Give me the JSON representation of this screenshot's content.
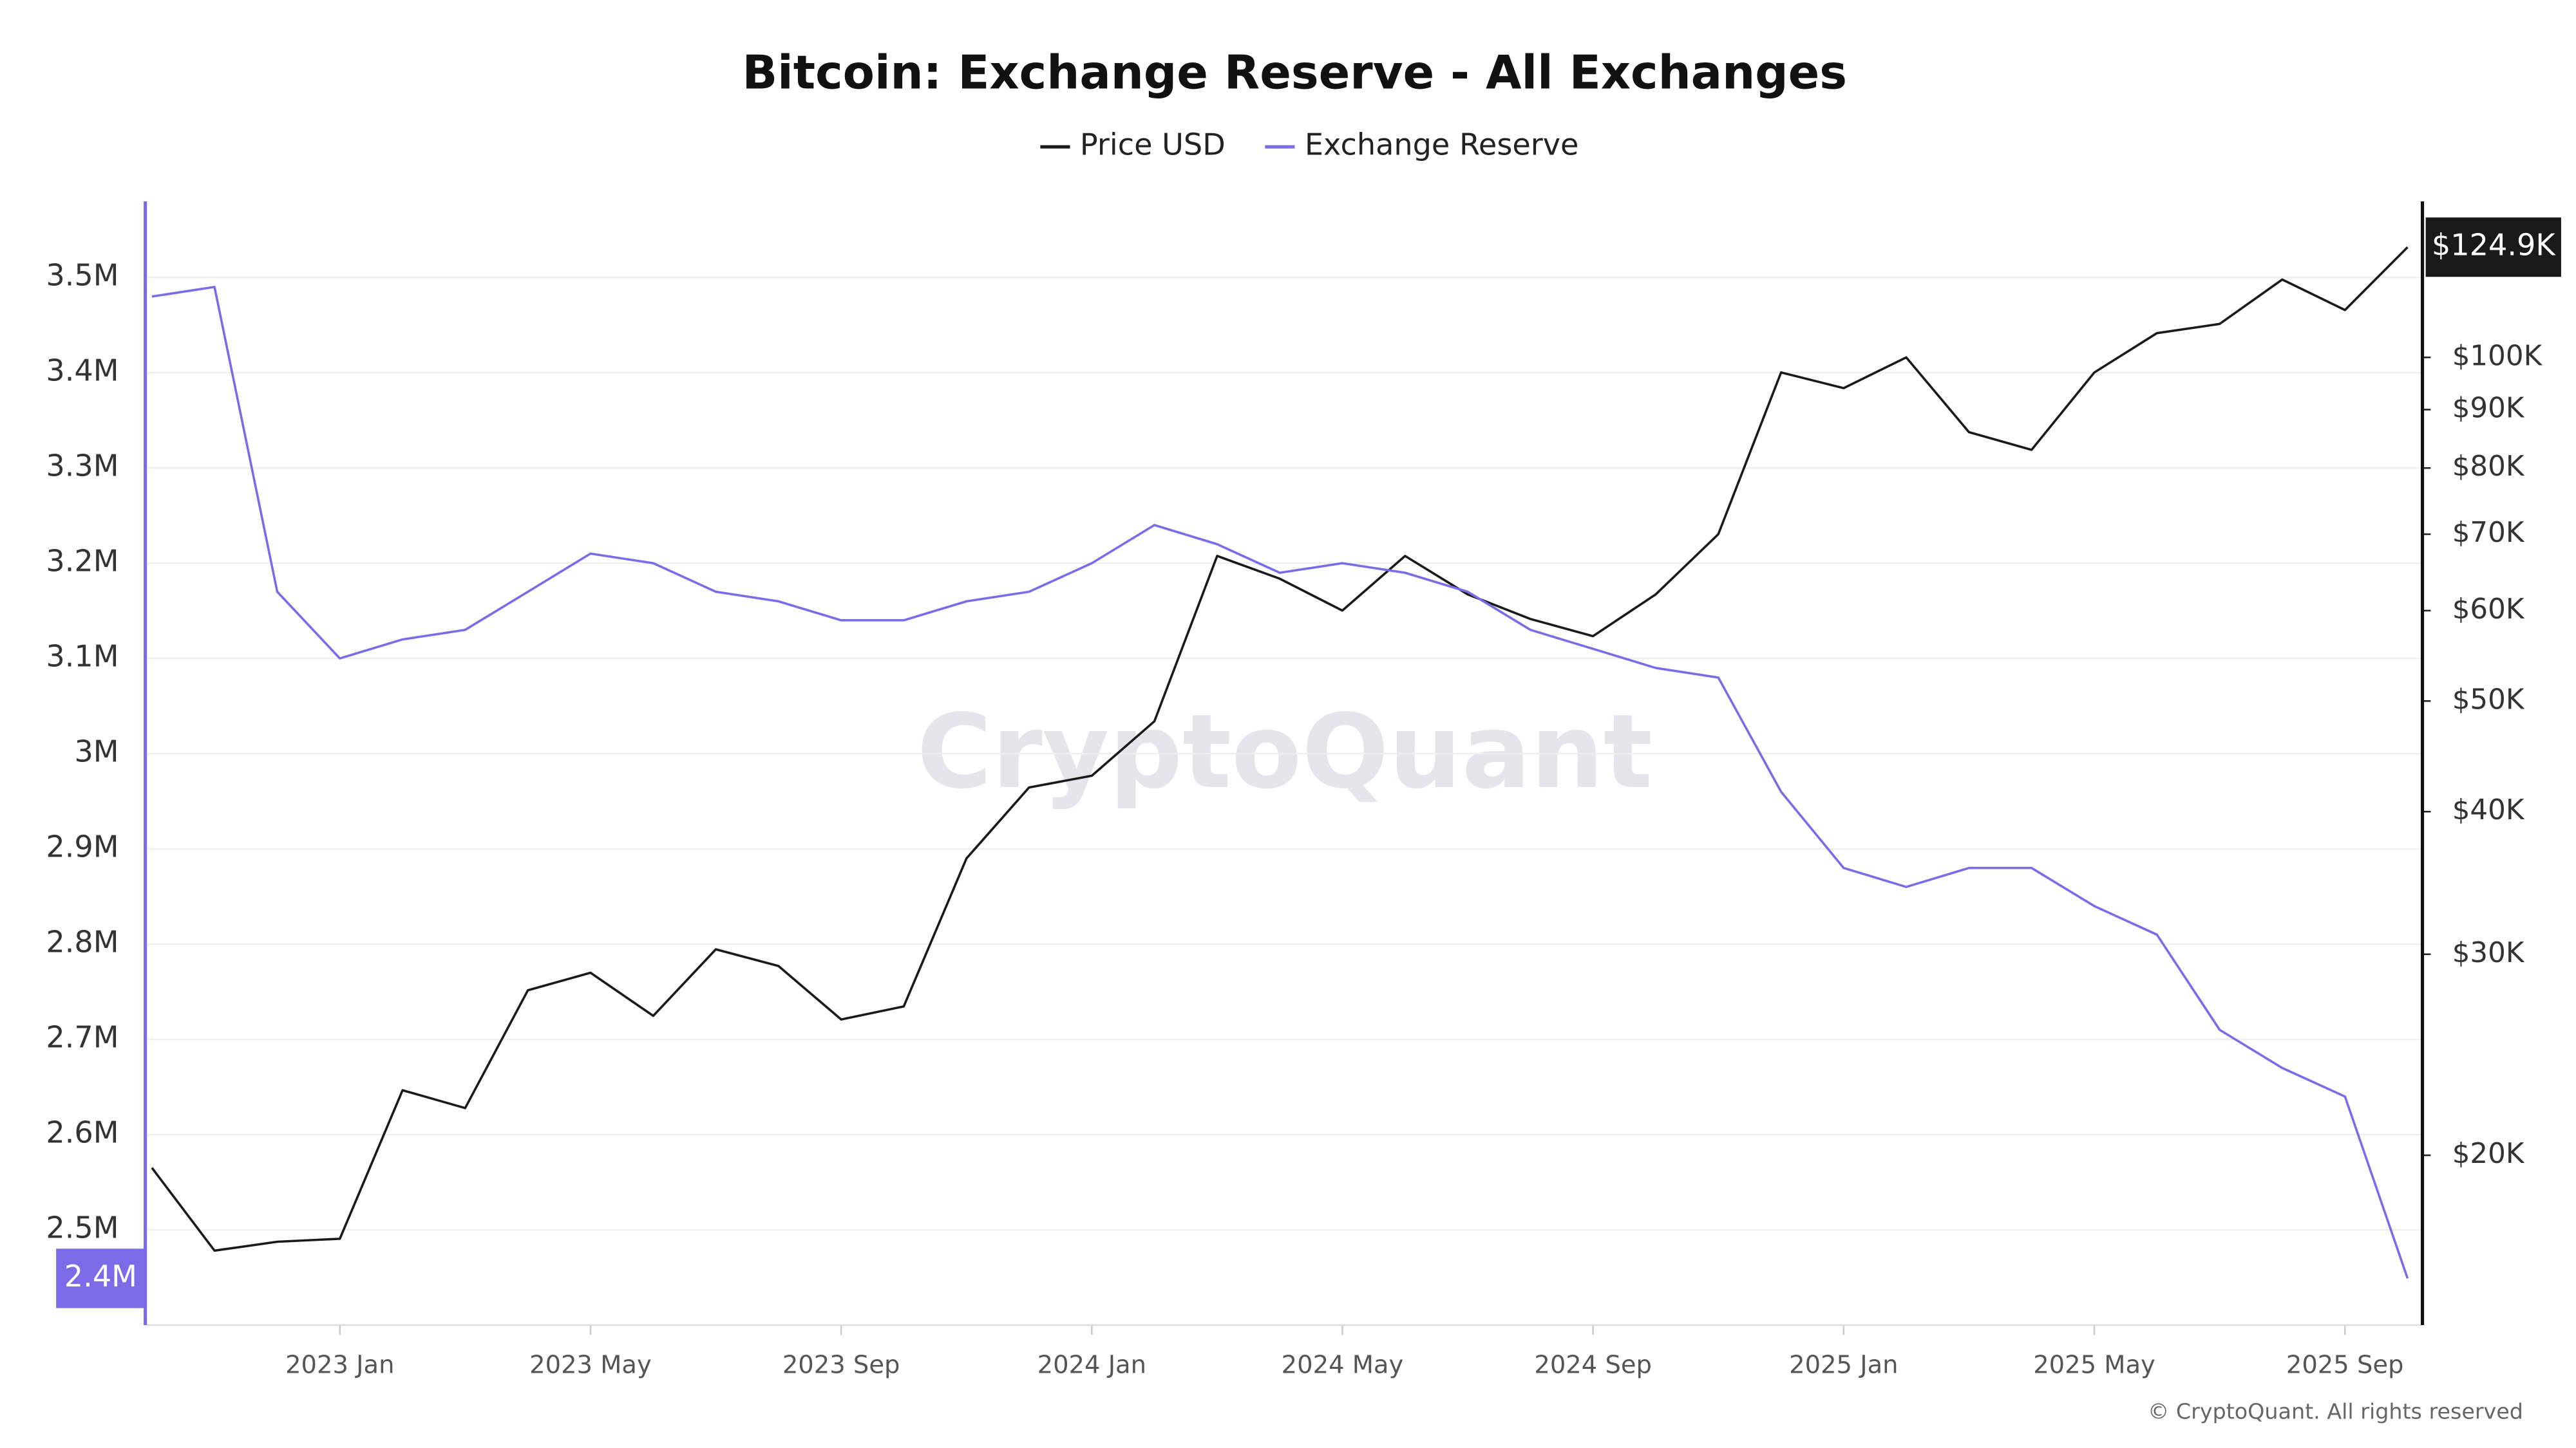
{
  "chart_data": {
    "type": "line",
    "title": "Bitcoin: Exchange Reserve - All Exchanges",
    "watermark": "CryptoQuant",
    "copyright": "© CryptoQuant. All rights reserved",
    "x": [
      "2022-10",
      "2022-11",
      "2022-12",
      "2023-01",
      "2023-02",
      "2023-03",
      "2023-04",
      "2023-05",
      "2023-06",
      "2023-07",
      "2023-08",
      "2023-09",
      "2023-10",
      "2023-11",
      "2023-12",
      "2024-01",
      "2024-02",
      "2024-03",
      "2024-04",
      "2024-05",
      "2024-06",
      "2024-07",
      "2024-08",
      "2024-09",
      "2024-10",
      "2024-11",
      "2024-12",
      "2025-01",
      "2025-02",
      "2025-03",
      "2025-04",
      "2025-05",
      "2025-06",
      "2025-07",
      "2025-08",
      "2025-09",
      "2025-10"
    ],
    "xlim": [
      "2022-10",
      "2025-10"
    ],
    "xticks": [
      {
        "value": "2023-01",
        "label": "2023 Jan"
      },
      {
        "value": "2023-05",
        "label": "2023 May"
      },
      {
        "value": "2023-09",
        "label": "2023 Sep"
      },
      {
        "value": "2024-01",
        "label": "2024 Jan"
      },
      {
        "value": "2024-05",
        "label": "2024 May"
      },
      {
        "value": "2024-09",
        "label": "2024 Sep"
      },
      {
        "value": "2025-01",
        "label": "2025 Jan"
      },
      {
        "value": "2025-05",
        "label": "2025 May"
      },
      {
        "value": "2025-09",
        "label": "2025 Sep"
      }
    ],
    "ylim": [
      2400000,
      3580000
    ],
    "yticks": [
      {
        "value": 2500000,
        "label": "2.5M"
      },
      {
        "value": 2600000,
        "label": "2.6M"
      },
      {
        "value": 2700000,
        "label": "2.7M"
      },
      {
        "value": 2800000,
        "label": "2.8M"
      },
      {
        "value": 2900000,
        "label": "2.9M"
      },
      {
        "value": 3000000,
        "label": "3M"
      },
      {
        "value": 3100000,
        "label": "3.1M"
      },
      {
        "value": 3200000,
        "label": "3.2M"
      },
      {
        "value": 3300000,
        "label": "3.3M"
      },
      {
        "value": 3400000,
        "label": "3.4M"
      },
      {
        "value": 3500000,
        "label": "3.5M"
      }
    ],
    "y2lim": [
      14200,
      137000
    ],
    "y2_log": true,
    "y2ticks": [
      {
        "value": 20000,
        "label": "$20K"
      },
      {
        "value": 30000,
        "label": "$30K"
      },
      {
        "value": 40000,
        "label": "$40K"
      },
      {
        "value": 50000,
        "label": "$50K"
      },
      {
        "value": 60000,
        "label": "$60K"
      },
      {
        "value": 70000,
        "label": "$70K"
      },
      {
        "value": 80000,
        "label": "$80K"
      },
      {
        "value": 90000,
        "label": "$90K"
      },
      {
        "value": 100000,
        "label": "$100K"
      }
    ],
    "grid": true,
    "legend": "top",
    "series": [
      {
        "name": "Price USD",
        "color": "#1a1a1a",
        "axis": "y2",
        "values": [
          19500,
          16500,
          16800,
          16900,
          22800,
          22000,
          27900,
          28900,
          26500,
          30300,
          29300,
          26300,
          27000,
          36400,
          42000,
          43000,
          48000,
          67000,
          64000,
          60000,
          67000,
          62000,
          59000,
          57000,
          62000,
          70000,
          97000,
          94000,
          100000,
          86000,
          83000,
          97000,
          105000,
          107000,
          117000,
          110000,
          124900
        ],
        "value_labels": [
          null,
          null,
          null,
          null,
          null,
          null,
          null,
          null,
          null,
          null,
          null,
          null,
          null,
          null,
          null,
          null,
          null,
          null,
          null,
          null,
          null,
          null,
          null,
          null,
          null,
          null,
          null,
          null,
          null,
          null,
          null,
          null,
          null,
          null,
          null,
          null,
          "$124.9K"
        ]
      },
      {
        "name": "Exchange Reserve",
        "color": "#7b6be6",
        "values": [
          3480000,
          3490000,
          3170000,
          3100000,
          3120000,
          3130000,
          3170000,
          3210000,
          3200000,
          3170000,
          3160000,
          3140000,
          3140000,
          3160000,
          3170000,
          3200000,
          3240000,
          3220000,
          3190000,
          3200000,
          3190000,
          3170000,
          3130000,
          3110000,
          3090000,
          3080000,
          2960000,
          2880000,
          2860000,
          2880000,
          2880000,
          2840000,
          2810000,
          2710000,
          2670000,
          2640000,
          2449000
        ],
        "value_labels": [
          null,
          null,
          null,
          null,
          null,
          null,
          null,
          null,
          null,
          null,
          null,
          null,
          null,
          null,
          null,
          null,
          null,
          null,
          null,
          null,
          null,
          null,
          null,
          null,
          null,
          null,
          null,
          null,
          null,
          null,
          null,
          null,
          null,
          null,
          null,
          null,
          "2.4M"
        ]
      }
    ]
  }
}
